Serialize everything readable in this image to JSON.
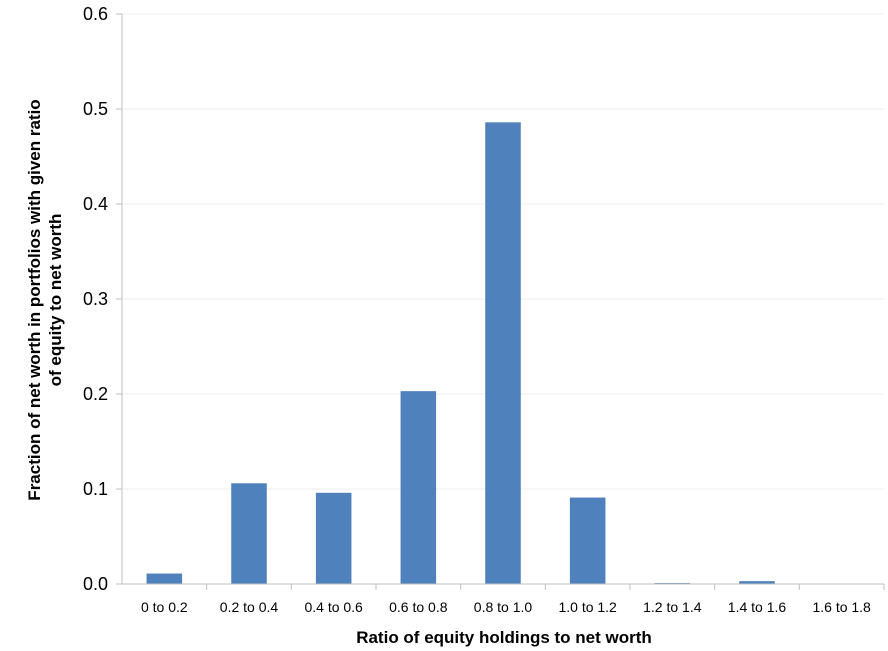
{
  "chart_data": {
    "type": "bar",
    "title": "",
    "xlabel": "Ratio of equity holdings to net worth",
    "ylabel_lines": [
      "Fraction of net worth in portfolios with given ratio",
      "of equity to net worth"
    ],
    "categories": [
      "0 to 0.2",
      "0.2 to 0.4",
      "0.4 to 0.6",
      "0.6 to 0.8",
      "0.8 to 1.0",
      "1.0 to 1.2",
      "1.2 to 1.4",
      "1.4 to 1.6",
      "1.6 to 1.8"
    ],
    "values": [
      0.011,
      0.106,
      0.096,
      0.203,
      0.486,
      0.091,
      0.001,
      0.003,
      0.0
    ],
    "ylim": [
      0,
      0.6
    ],
    "yticks": [
      0.0,
      0.1,
      0.2,
      0.3,
      0.4,
      0.5,
      0.6
    ],
    "ytick_labels": [
      "0.0",
      "0.1",
      "0.2",
      "0.3",
      "0.4",
      "0.5",
      "0.6"
    ],
    "bar_color": "#4f81bd",
    "grid": true,
    "grid_color": "#ececec",
    "axis_color": "#bfbfbf",
    "legend": "none"
  }
}
